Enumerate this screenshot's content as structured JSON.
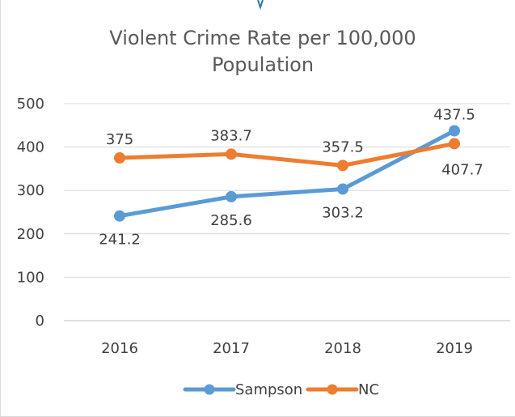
{
  "chart_data": {
    "type": "line",
    "title": "Violent Crime Rate per 100,000 Population",
    "categories": [
      "2016",
      "2017",
      "2018",
      "2019"
    ],
    "ylim": [
      0,
      500
    ],
    "yticks": [
      0,
      100,
      200,
      300,
      400,
      500
    ],
    "grid": true,
    "legend_position": "bottom",
    "series": [
      {
        "name": "Sampson",
        "values": [
          241.2,
          285.6,
          303.2,
          437.5
        ],
        "labels": [
          "241.2",
          "285.6",
          "303.2",
          "437.5"
        ],
        "color": "#5b9bd5"
      },
      {
        "name": "NC",
        "values": [
          375,
          383.7,
          357.5,
          407.7
        ],
        "labels": [
          "375",
          "383.7",
          "357.5",
          "407.7"
        ],
        "color": "#ed7d31"
      }
    ]
  }
}
